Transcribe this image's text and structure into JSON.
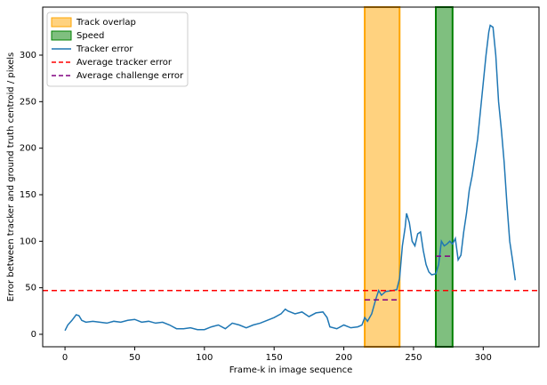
{
  "chart_data": {
    "type": "line",
    "xlabel": "Frame-k in image sequence",
    "ylabel": "Error between tracker and ground truth centroid / pixels",
    "xlim": [
      -16,
      340
    ],
    "ylim": [
      -13.4,
      351.6
    ],
    "xticks": [
      0,
      50,
      100,
      150,
      200,
      250,
      300
    ],
    "yticks": [
      0,
      50,
      100,
      150,
      200,
      250,
      300
    ],
    "legend": "upper left",
    "spans": [
      {
        "name": "Track overlap",
        "color": "#ffa500",
        "x": [
          215,
          240
        ]
      },
      {
        "name": "Speed",
        "color": "#008000",
        "x": [
          266,
          278
        ]
      }
    ],
    "series": [
      {
        "name": "Tracker error",
        "color": "#1f77b4",
        "x": [
          0,
          2,
          5,
          8,
          10,
          12,
          15,
          20,
          25,
          30,
          35,
          40,
          45,
          50,
          55,
          60,
          65,
          70,
          75,
          80,
          85,
          90,
          95,
          100,
          105,
          110,
          115,
          120,
          125,
          130,
          135,
          140,
          145,
          150,
          155,
          158,
          160,
          165,
          170,
          175,
          180,
          185,
          188,
          190,
          195,
          200,
          205,
          210,
          213,
          215,
          217,
          220,
          223,
          225,
          227,
          230,
          235,
          238,
          240,
          242,
          244,
          245,
          247,
          249,
          251,
          253,
          255,
          257,
          259,
          261,
          263,
          266,
          268,
          270,
          272,
          274,
          276,
          278,
          280,
          282,
          284,
          286,
          288,
          290,
          292,
          294,
          296,
          298,
          300,
          302,
          304,
          305,
          307,
          309,
          311,
          313,
          315,
          317,
          319,
          321,
          323
        ],
        "values": [
          4,
          10,
          15,
          21,
          20,
          15,
          13,
          14,
          13,
          12,
          14,
          13,
          15,
          16,
          13,
          14,
          12,
          13,
          10,
          6,
          6,
          7,
          5,
          5,
          8,
          10,
          6,
          12,
          10,
          7,
          10,
          12,
          15,
          18,
          22,
          27,
          25,
          22,
          24,
          19,
          23,
          24,
          18,
          8,
          6,
          10,
          7,
          8,
          10,
          18,
          14,
          22,
          38,
          47,
          42,
          46,
          47,
          48,
          60,
          95,
          115,
          130,
          120,
          100,
          95,
          108,
          110,
          90,
          75,
          67,
          64,
          65,
          75,
          100,
          95,
          97,
          100,
          97,
          103,
          80,
          85,
          110,
          130,
          155,
          170,
          190,
          210,
          240,
          270,
          300,
          325,
          332,
          330,
          300,
          250,
          220,
          185,
          140,
          100,
          80,
          58
        ]
      }
    ],
    "hlines": [
      {
        "name": "Average tracker error",
        "color": "#ff0000",
        "y": 47
      }
    ],
    "segments": [
      {
        "name": "Average challenge error",
        "color": "#800080",
        "pieces": [
          {
            "x": [
              215,
              240
            ],
            "y": 37
          },
          {
            "x": [
              266,
              278
            ],
            "y": 84
          }
        ]
      }
    ]
  }
}
